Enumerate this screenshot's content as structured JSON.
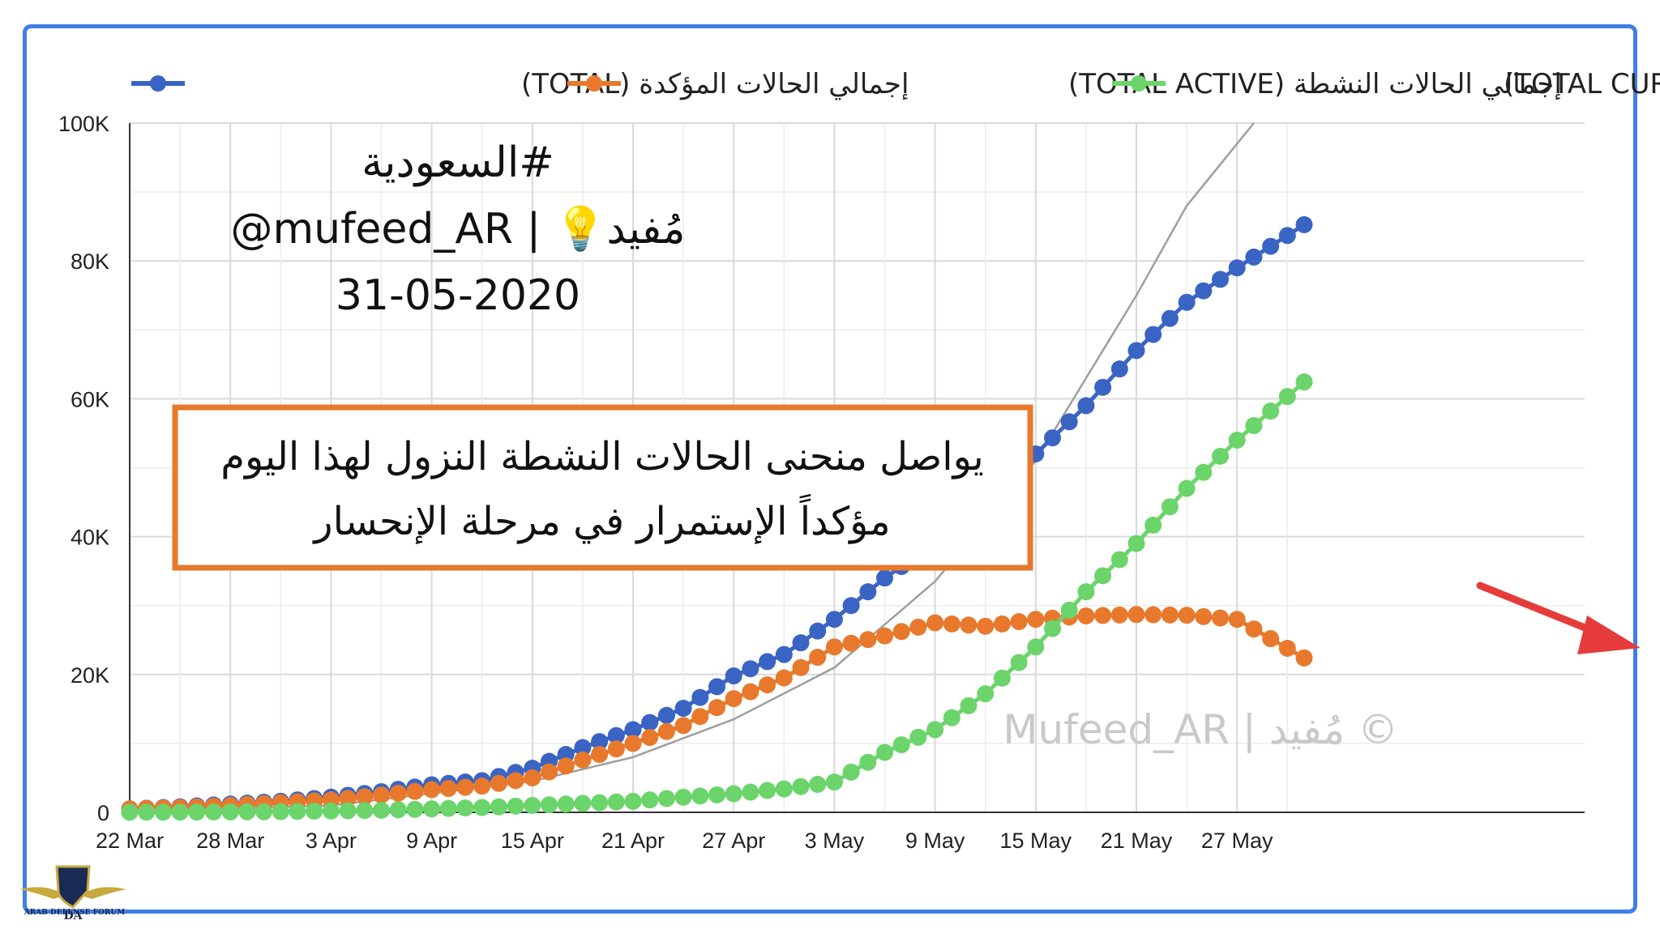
{
  "chart_data": {
    "type": "line",
    "legend": [
      {
        "label": "إجمالي الحالات المؤكدة (TOTAL)",
        "color": "#3a64c4"
      },
      {
        "label": "إجمالي الحالات النشطة (TOTAL ACTIVE)",
        "color": "#e8792c"
      },
      {
        "label": "إجمالي الشفاء (TOTAL CURE)",
        "color": "#6bd46b"
      }
    ],
    "legend_position": "top",
    "x_tick_labels": [
      "22 Mar",
      "28 Mar",
      "3 Apr",
      "9 Apr",
      "15 Apr",
      "21 Apr",
      "27 Apr",
      "3 May",
      "9 May",
      "15 May",
      "21 May",
      "27 May"
    ],
    "x_range": [
      "2020-03-22",
      "2020-05-31"
    ],
    "y_ticks": [
      0,
      20000,
      40000,
      60000,
      80000,
      100000
    ],
    "y_tick_labels": [
      "0",
      "20K",
      "40K",
      "60K",
      "80K",
      "100K"
    ],
    "ylim": [
      0,
      100000
    ],
    "grid": true,
    "series": [
      {
        "name": "إجمالي الحالات المؤكدة (TOTAL)",
        "color": "#3a64c4",
        "dates": [
          "2020-03-22",
          "2020-03-25",
          "2020-03-28",
          "2020-03-31",
          "2020-04-03",
          "2020-04-06",
          "2020-04-09",
          "2020-04-12",
          "2020-04-15",
          "2020-04-18",
          "2020-04-21",
          "2020-04-24",
          "2020-04-27",
          "2020-04-30",
          "2020-05-03",
          "2020-05-06",
          "2020-05-09",
          "2020-05-12",
          "2020-05-15",
          "2020-05-18",
          "2020-05-21",
          "2020-05-24",
          "2020-05-27",
          "2020-05-31"
        ],
        "values": [
          500,
          800,
          1200,
          1600,
          2200,
          3000,
          4000,
          4600,
          6400,
          9400,
          12000,
          15100,
          19800,
          22900,
          28000,
          34000,
          39000,
          44800,
          52000,
          59000,
          67000,
          74000,
          79000,
          85261
        ]
      },
      {
        "name": "إجمالي الحالات النشطة (TOTAL ACTIVE)",
        "color": "#e8792c",
        "dates": [
          "2020-03-22",
          "2020-03-25",
          "2020-03-28",
          "2020-03-31",
          "2020-04-03",
          "2020-04-06",
          "2020-04-09",
          "2020-04-12",
          "2020-04-15",
          "2020-04-18",
          "2020-04-21",
          "2020-04-24",
          "2020-04-27",
          "2020-04-30",
          "2020-05-03",
          "2020-05-06",
          "2020-05-09",
          "2020-05-12",
          "2020-05-15",
          "2020-05-18",
          "2020-05-21",
          "2020-05-24",
          "2020-05-27",
          "2020-05-31"
        ],
        "values": [
          500,
          700,
          1000,
          1400,
          1800,
          2500,
          3300,
          3800,
          5000,
          7600,
          10000,
          12600,
          16500,
          19500,
          24000,
          25600,
          27500,
          27000,
          28000,
          28500,
          28700,
          28600,
          28000,
          22400
        ]
      },
      {
        "name": "إجمالي الشفاء (TOTAL CURE)",
        "color": "#6bd46b",
        "dates": [
          "2020-03-22",
          "2020-03-25",
          "2020-03-28",
          "2020-03-31",
          "2020-04-03",
          "2020-04-06",
          "2020-04-09",
          "2020-04-12",
          "2020-04-15",
          "2020-04-18",
          "2020-04-21",
          "2020-04-24",
          "2020-04-27",
          "2020-04-30",
          "2020-05-03",
          "2020-05-06",
          "2020-05-09",
          "2020-05-12",
          "2020-05-15",
          "2020-05-18",
          "2020-05-21",
          "2020-05-24",
          "2020-05-27",
          "2020-05-31"
        ],
        "values": [
          20,
          30,
          60,
          100,
          200,
          300,
          500,
          700,
          1000,
          1300,
          1600,
          2200,
          2700,
          3400,
          4400,
          8700,
          12000,
          17200,
          24000,
          32000,
          39000,
          47000,
          54000,
          62442
        ]
      },
      {
        "name": "",
        "style": "thin gray curve",
        "color": "#9e9e9e",
        "dates": [
          "2020-03-22",
          "2020-04-03",
          "2020-04-15",
          "2020-04-21",
          "2020-04-27",
          "2020-05-03",
          "2020-05-09",
          "2020-05-15",
          "2020-05-21",
          "2020-05-24",
          "2020-05-28"
        ],
        "values": [
          0,
          1000,
          4500,
          8000,
          13500,
          21000,
          33500,
          51000,
          75000,
          88000,
          100000
        ]
      }
    ]
  },
  "overlay": {
    "hashtag": "#السعودية",
    "handle": "@mufeed_AR | 💡مُفيد",
    "date": "31-05-2020"
  },
  "callout": {
    "line1": "يواصل منحنى الحالات النشطة النزول لهذا اليوم",
    "line2": "مؤكداً الإستمرار في مرحلة الإنحسار",
    "border_color": "#e8792c"
  },
  "watermark": "Mufeed_AR | مُفيد ©",
  "arrow_color": "#e63b3b",
  "logo": {
    "monogram": "DA",
    "text": "ARAB DEFENSE FORUM"
  }
}
